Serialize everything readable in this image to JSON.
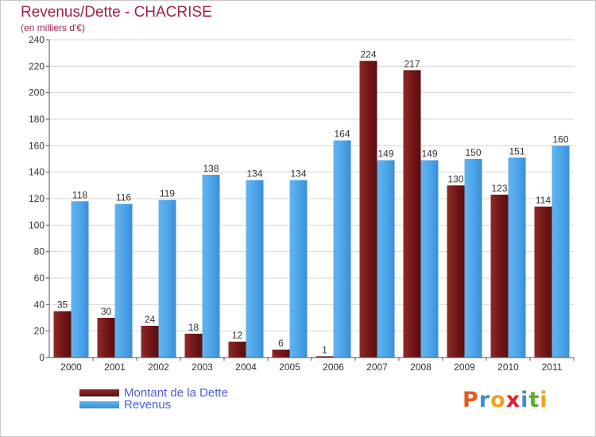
{
  "title": "Revenus/Dette - CHACRISE",
  "subtitle": "(en milliers d'€)",
  "logo": {
    "letters": [
      "P",
      "r",
      "o",
      "x",
      "i",
      "t",
      "i"
    ],
    "colors": [
      "#e8581c",
      "#3a8fd6",
      "#f0a020",
      "#e02030",
      "#3a8fd6",
      "#58b030",
      "#f0a020"
    ]
  },
  "colors": {
    "debt": "#7a1c1c",
    "revenue": "#4aa3e8",
    "title": "#a12346",
    "legend_text": "#4a5de0",
    "axis": "#555555",
    "grid": "#d6d6d6"
  },
  "chart_data": {
    "type": "bar",
    "title": "Revenus/Dette - CHACRISE",
    "ylabel": "(en milliers d'€)",
    "xlabel": "",
    "categories": [
      "2000",
      "2001",
      "2002",
      "2003",
      "2004",
      "2005",
      "2006",
      "2007",
      "2008",
      "2009",
      "2010",
      "2011"
    ],
    "series": [
      {
        "name": "Montant de la Dette",
        "values": [
          35,
          30,
          24,
          18,
          12,
          6,
          1,
          224,
          217,
          130,
          123,
          114
        ]
      },
      {
        "name": "Revenus",
        "values": [
          118,
          116,
          119,
          138,
          134,
          134,
          164,
          149,
          149,
          150,
          151,
          160
        ]
      }
    ],
    "ylim": [
      0,
      240
    ],
    "yticks": [
      0,
      20,
      40,
      60,
      80,
      100,
      120,
      140,
      160,
      180,
      200,
      220,
      240
    ],
    "grid": true,
    "legend": "bottom-left"
  }
}
